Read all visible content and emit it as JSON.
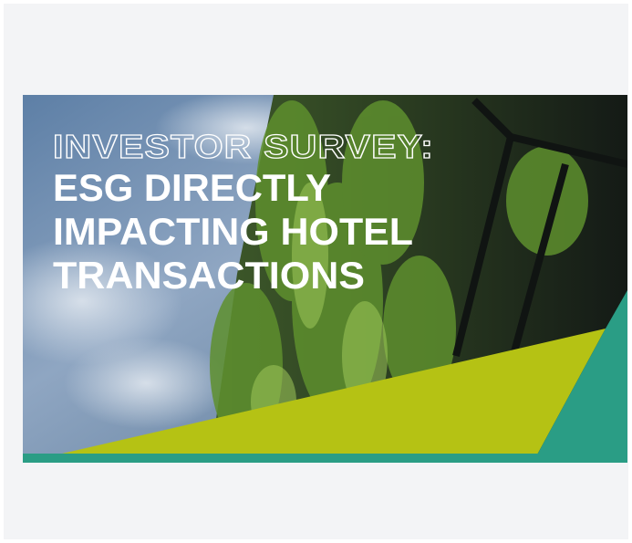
{
  "banner": {
    "kicker": "INVESTOR SURVEY:",
    "headline_lines": [
      "ESG DIRECTLY",
      "IMPACTING HOTEL",
      "TRANSACTIONS"
    ]
  }
}
